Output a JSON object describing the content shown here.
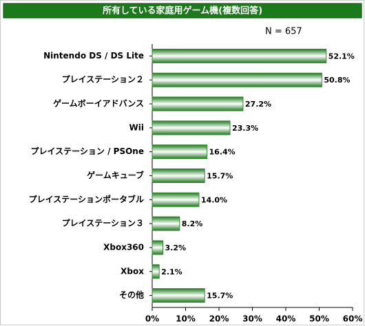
{
  "chart_data": {
    "type": "hbar",
    "title": "所有している家庭用ゲーム機(複数回答)",
    "annotation": "N = 657",
    "categories": [
      "Nintendo DS / DS Lite",
      "プレイステーション２",
      "ゲームボーイアドバンス",
      "Wii",
      "プレイステーション / PSOne",
      "ゲームキューブ",
      "プレイステーションポータブル",
      "プレイステーション３",
      "Xbox360",
      "Xbox",
      "その他"
    ],
    "values": [
      52.1,
      50.8,
      27.2,
      23.3,
      16.4,
      15.7,
      14.0,
      8.2,
      3.2,
      2.1,
      15.7
    ],
    "value_labels": [
      "52.1%",
      "50.8%",
      "27.2%",
      "23.3%",
      "16.4%",
      "15.7%",
      "14.0%",
      "8.2%",
      "3.2%",
      "2.1%",
      "15.7%"
    ],
    "color": "#2f8a2f",
    "xlim": [
      0,
      60
    ],
    "xticks": [
      {
        "value": 0,
        "label": "0%"
      },
      {
        "value": 10,
        "label": "10%"
      },
      {
        "value": 20,
        "label": "20%"
      },
      {
        "value": 30,
        "label": "30%"
      },
      {
        "value": 40,
        "label": "40%"
      },
      {
        "value": 50,
        "label": "50%"
      },
      {
        "value": 60,
        "label": "60%"
      }
    ],
    "grid": false
  }
}
